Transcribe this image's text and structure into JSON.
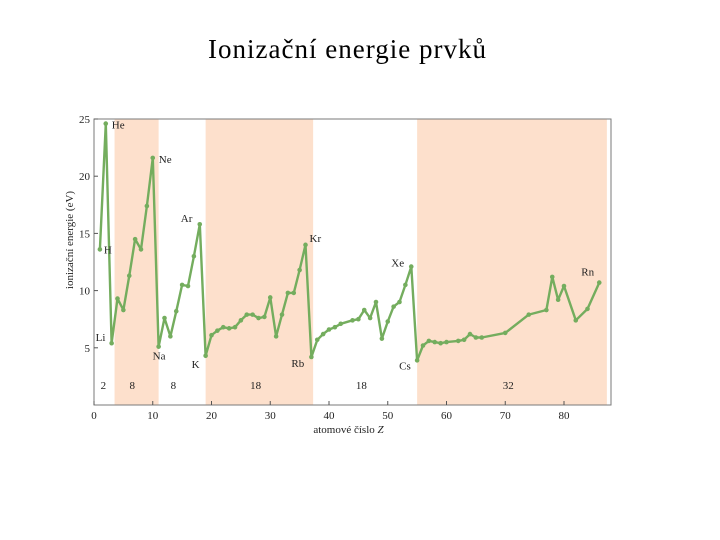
{
  "page": {
    "title": "Ionizační energie prvků"
  },
  "chart_data": {
    "type": "line",
    "title": "Ionizační energie prvků",
    "xlabel_prefix": "atomové číslo ",
    "xlabel_symbol": "Z",
    "ylabel": "ionizační energie (eV)",
    "xlim": [
      0,
      88
    ],
    "ylim": [
      0,
      25
    ],
    "x_ticks": [
      0,
      10,
      20,
      30,
      40,
      50,
      60,
      70,
      80
    ],
    "y_ticks": [
      5,
      10,
      15,
      20,
      25
    ],
    "line_color": "#74ad5e",
    "shade_color": "#fde0cc",
    "shaded_ranges": [
      [
        3.5,
        11
      ],
      [
        19,
        37.3
      ],
      [
        55,
        87.3
      ]
    ],
    "period_labels": [
      {
        "text": "2",
        "x": 1.6
      },
      {
        "text": "8",
        "x": 6.5
      },
      {
        "text": "8",
        "x": 13.5
      },
      {
        "text": "18",
        "x": 27.5
      },
      {
        "text": "18",
        "x": 45.5
      },
      {
        "text": "32",
        "x": 70.5
      }
    ],
    "element_labels": [
      {
        "text": "H",
        "z": 1,
        "dx": 4,
        "dy": 4
      },
      {
        "text": "He",
        "z": 2,
        "dx": 6,
        "dy": 5
      },
      {
        "text": "Li",
        "z": 3,
        "dx": -16,
        "dy": -2
      },
      {
        "text": "Ne",
        "z": 10,
        "dx": 6,
        "dy": 5
      },
      {
        "text": "Na",
        "z": 11,
        "dx": -6,
        "dy": 13
      },
      {
        "text": "Ar",
        "z": 18,
        "dx": -19,
        "dy": -2
      },
      {
        "text": "K",
        "z": 19,
        "dx": -14,
        "dy": 12
      },
      {
        "text": "Kr",
        "z": 36,
        "dx": 4,
        "dy": -3
      },
      {
        "text": "Rb",
        "z": 37,
        "dx": -20,
        "dy": 10
      },
      {
        "text": "Xe",
        "z": 54,
        "dx": -20,
        "dy": 0
      },
      {
        "text": "Cs",
        "z": 55,
        "dx": -18,
        "dy": 9
      },
      {
        "text": "Rn",
        "z": 86,
        "dx": -18,
        "dy": -7
      }
    ],
    "series": [
      {
        "x": [
          1,
          2,
          3,
          4,
          5,
          6,
          7,
          8,
          9,
          10,
          11,
          12,
          13,
          14,
          15,
          16,
          17,
          18,
          19,
          20,
          21,
          22,
          23,
          24,
          25,
          26,
          27,
          28,
          29,
          30,
          31,
          32,
          33,
          34,
          35,
          36,
          37,
          38,
          39,
          40,
          41,
          42,
          44,
          45,
          46,
          47,
          48,
          49,
          50,
          51,
          52,
          53,
          54,
          55,
          56,
          57,
          58,
          59,
          60,
          62,
          63,
          64,
          65,
          66,
          70,
          74,
          77,
          78,
          79,
          80,
          82,
          84,
          86
        ],
        "y": [
          13.6,
          24.6,
          5.4,
          9.3,
          8.3,
          11.3,
          14.5,
          13.6,
          17.4,
          21.6,
          5.1,
          7.6,
          6.0,
          8.2,
          10.5,
          10.4,
          13.0,
          15.8,
          4.3,
          6.1,
          6.5,
          6.8,
          6.7,
          6.8,
          7.4,
          7.9,
          7.9,
          7.6,
          7.7,
          9.4,
          6.0,
          7.9,
          9.8,
          9.8,
          11.8,
          14.0,
          4.2,
          5.7,
          6.2,
          6.6,
          6.8,
          7.1,
          7.4,
          7.5,
          8.3,
          7.6,
          9.0,
          5.8,
          7.3,
          8.6,
          9.0,
          10.5,
          12.1,
          3.9,
          5.2,
          5.6,
          5.5,
          5.4,
          5.5,
          5.6,
          5.7,
          6.2,
          5.9,
          5.9,
          6.3,
          7.9,
          8.3,
          11.2,
          9.2,
          10.4,
          7.4,
          8.4,
          10.7
        ]
      }
    ]
  }
}
